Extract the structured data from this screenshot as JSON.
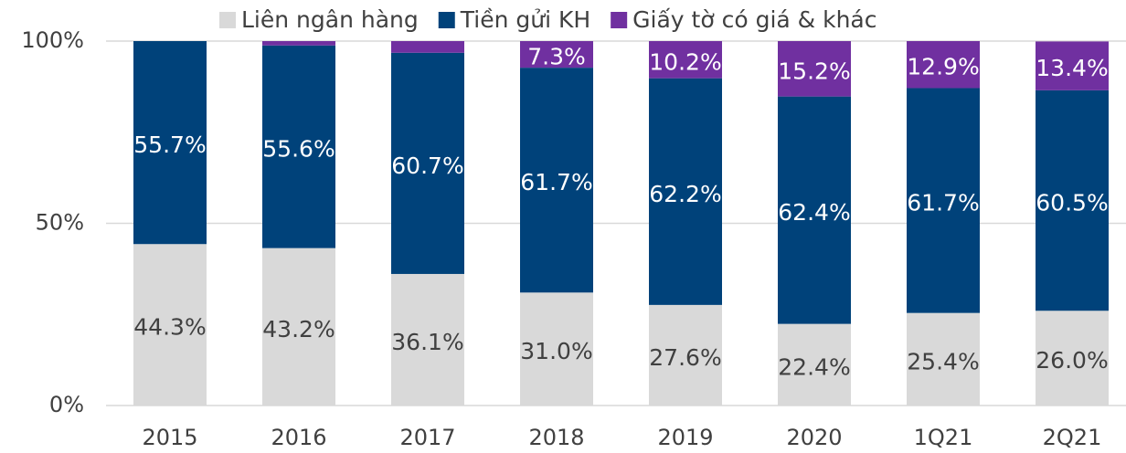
{
  "chart_data": {
    "type": "stacked_bar",
    "categories": [
      "2015",
      "2016",
      "2017",
      "2018",
      "2019",
      "2020",
      "1Q21",
      "2Q21"
    ],
    "series": [
      {
        "name": "Liên ngân hàng",
        "color": "#d9d9d9",
        "values": [
          44.3,
          43.2,
          36.1,
          31.0,
          27.6,
          22.4,
          25.4,
          26.0
        ],
        "value_labels": [
          "44.3%",
          "43.2%",
          "36.1%",
          "31.0%",
          "27.6%",
          "22.4%",
          "25.4%",
          "26.0%"
        ]
      },
      {
        "name": "Tiền gửi KH",
        "color": "#00427a",
        "values": [
          55.7,
          55.6,
          60.7,
          61.7,
          62.2,
          62.4,
          61.7,
          60.5
        ],
        "value_labels": [
          "55.7%",
          "55.6%",
          "60.7%",
          "61.7%",
          "62.2%",
          "62.4%",
          "61.7%",
          "60.5%"
        ]
      },
      {
        "name": "Giấy tờ có giá & khác",
        "color": "#7030a0",
        "values": [
          0,
          1.2,
          3.2,
          7.3,
          10.2,
          15.2,
          12.9,
          13.4
        ],
        "value_labels": [
          null,
          null,
          null,
          "7.3%",
          "10.2%",
          "15.2%",
          "12.9%",
          "13.4%"
        ]
      }
    ],
    "ylim": [
      0,
      100
    ],
    "yticks": [
      {
        "value": 0,
        "label": "0%"
      },
      {
        "value": 50,
        "label": "50%"
      },
      {
        "value": 100,
        "label": "100%"
      }
    ],
    "legend": "top"
  }
}
